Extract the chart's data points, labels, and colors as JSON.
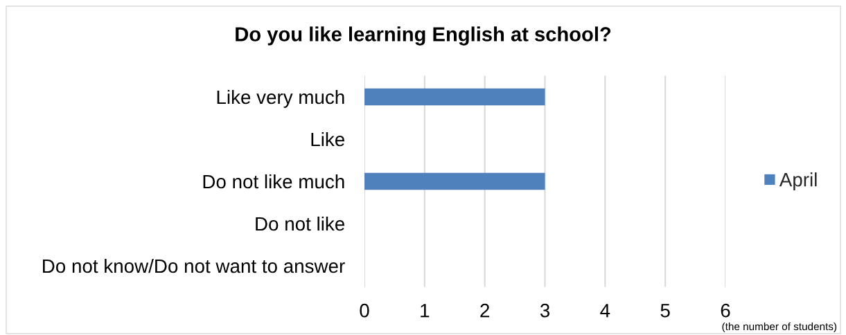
{
  "chart_data": {
    "type": "bar",
    "orientation": "horizontal",
    "title": "Do you like learning English at school?",
    "categories": [
      "Like very much",
      "Like",
      "Do not like much",
      "Do not like",
      "Do not know/Do not want to answer"
    ],
    "series": [
      {
        "name": "April",
        "color": "#4f81bd",
        "values": [
          3,
          0,
          3,
          0,
          0
        ]
      }
    ],
    "xlim": [
      0,
      6
    ],
    "xticks": [
      0,
      1,
      2,
      3,
      4,
      5,
      6
    ],
    "grid": "x",
    "legend": "right",
    "annotations": [
      "(the number of students)"
    ]
  }
}
